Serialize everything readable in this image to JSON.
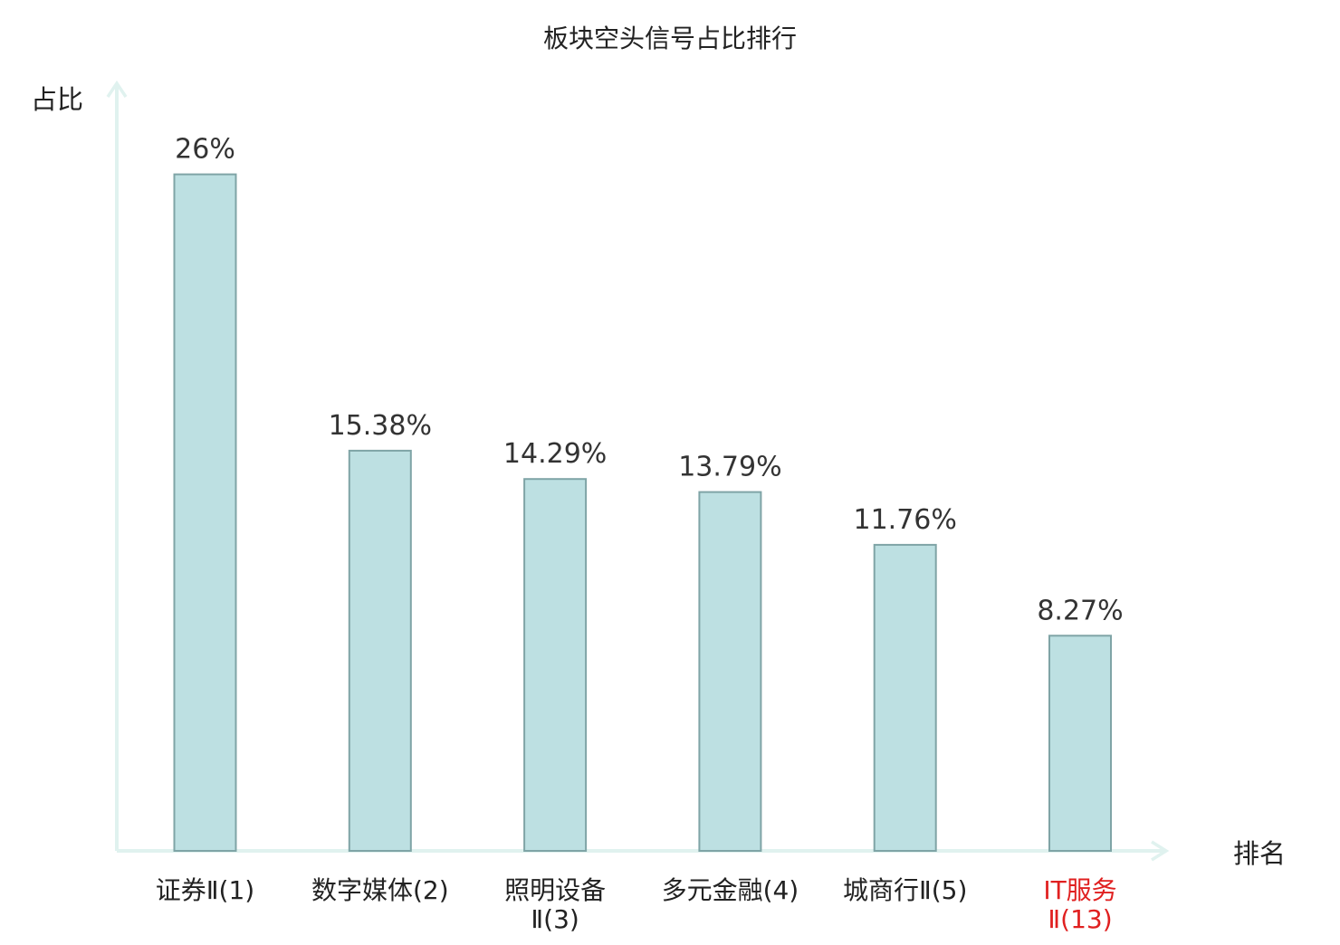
{
  "chart_data": {
    "type": "bar",
    "title": "板块空头信号占比排行",
    "xlabel": "排名",
    "ylabel": "占比",
    "categories": [
      {
        "lines": [
          "证券Ⅱ(1)"
        ],
        "highlight": false
      },
      {
        "lines": [
          "数字媒体(2)"
        ],
        "highlight": false
      },
      {
        "lines": [
          "照明设备",
          "Ⅱ(3)"
        ],
        "highlight": false
      },
      {
        "lines": [
          "多元金融(4)"
        ],
        "highlight": false
      },
      {
        "lines": [
          "城商行Ⅱ(5)"
        ],
        "highlight": false
      },
      {
        "lines": [
          "IT服务",
          "Ⅱ(13)"
        ],
        "highlight": true
      }
    ],
    "values": [
      26,
      15.38,
      14.29,
      13.79,
      11.76,
      8.27
    ],
    "value_labels": [
      "26%",
      "15.38%",
      "14.29%",
      "13.79%",
      "11.76%",
      "8.27%"
    ],
    "ylim": [
      0,
      29.5
    ],
    "grid": false,
    "legend": "none",
    "colors": {
      "bar_fill": "#bde0e2",
      "bar_stroke": "#7fa4a6",
      "axis": "#e0f2ef",
      "text": "#222222",
      "value_text": "#333333",
      "highlight_text": "#e02020"
    }
  }
}
